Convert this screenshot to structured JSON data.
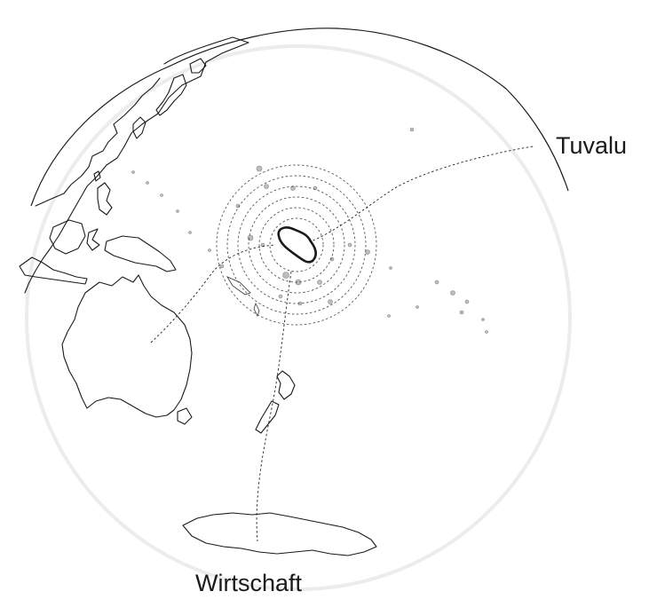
{
  "map": {
    "projection": "orthographic globe centered on the South Pacific",
    "highlighted_region": "Tuvalu",
    "labels": {
      "top_right": "Tuvalu",
      "bottom": "Wirtschaft"
    },
    "colors": {
      "coastline": "#1a1a1a",
      "islands": "#bdbdbd",
      "rings": "#555555",
      "globe_rim": "#ececec"
    }
  }
}
